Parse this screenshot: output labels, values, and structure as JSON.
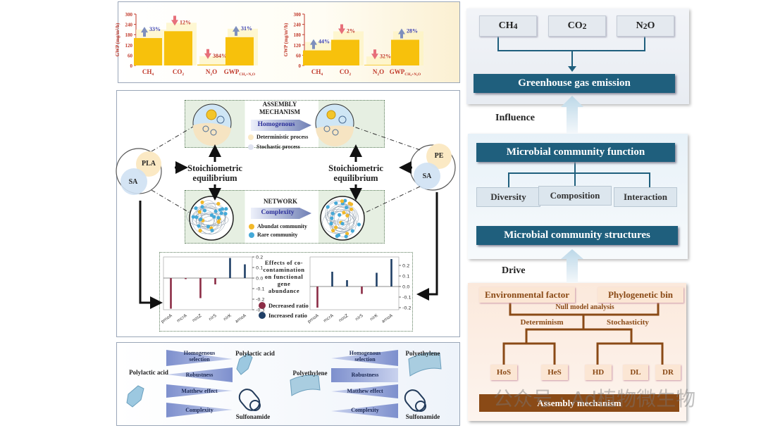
{
  "gwp_panel": {
    "ylabel": "GWP (mg/m²/h)"
  },
  "chart_data": [
    {
      "type": "bar",
      "ylabel": "GWP (mg/m²/h)",
      "ylim": [
        0,
        300
      ],
      "yticks": [
        "0",
        "60",
        "120",
        "180",
        "240",
        "300"
      ],
      "categories": [
        "CH4",
        "CO2",
        "N2O",
        "GWP CH4+N2O"
      ],
      "values": [
        160,
        200,
        5,
        165
      ],
      "annotations": [
        {
          "label": "33%",
          "direction": "up"
        },
        {
          "label": "12%",
          "direction": "down"
        },
        {
          "label": "384%",
          "direction": "down"
        },
        {
          "label": "31%",
          "direction": "up"
        }
      ],
      "bar_color": "#f7c10c"
    },
    {
      "type": "bar",
      "ylabel": "GWP (mg/m²/h)",
      "ylim": [
        0,
        300
      ],
      "yticks": [
        "0",
        "60",
        "120",
        "180",
        "240",
        "300"
      ],
      "categories": [
        "CH4",
        "CO2",
        "N2O",
        "GWP CH4+N2O"
      ],
      "values": [
        88,
        150,
        3,
        150
      ],
      "annotations": [
        {
          "label": "44%",
          "direction": "up"
        },
        {
          "label": "2%",
          "direction": "down"
        },
        {
          "label": "32%",
          "direction": "down"
        },
        {
          "label": "28%",
          "direction": "up"
        }
      ],
      "bar_color": "#f7c10c"
    },
    {
      "type": "bar",
      "categories": [
        "pmoA",
        "mcrA",
        "nosZ",
        "nirS",
        "nirK",
        "amoA"
      ],
      "values": [
        -0.29,
        -0.01,
        -0.19,
        -0.06,
        0.19,
        0.13
      ],
      "ylim": [
        -0.3,
        0.2
      ],
      "yticks": [
        "0.2",
        "0.1",
        "0.0",
        "-0.1",
        "-0.2",
        "-0.3"
      ],
      "colors": {
        "decreased": "#8b2c45",
        "increased": "#1f3f66"
      }
    },
    {
      "type": "bar",
      "categories": [
        "pmoA",
        "mcrA",
        "nosZ",
        "nirS",
        "nirK",
        "amoA"
      ],
      "values": [
        -0.2,
        0.14,
        0.06,
        -0.07,
        0.13,
        0.26
      ],
      "ylim": [
        -0.22,
        0.28
      ],
      "yticks": [
        "0.2",
        "0.1",
        "0.0",
        "-0.1",
        "-0.2"
      ],
      "colors": {
        "decreased": "#8b2c45",
        "increased": "#1f3f66"
      }
    }
  ],
  "gwp_labels": {
    "ch4": {
      "main": "CH",
      "sub": "4"
    },
    "co2": {
      "main": "CO",
      "sub": "2"
    },
    "n2o": {
      "main": "N",
      "sub": "2",
      "tail": "O"
    },
    "gwp": {
      "main": "GWP",
      "sub": "CH₄+N₂O"
    }
  },
  "middle": {
    "left_venn": {
      "a": "PLA",
      "b": "SA"
    },
    "right_venn": {
      "a": "PE",
      "b": "SA"
    },
    "assembly_title_1": "ASSEMBLY",
    "assembly_title_2": "MECHANISM",
    "assembly_arrow": "Homogenous",
    "legend_det": "Deterministic process",
    "legend_sto": "Stochastic process",
    "stoich_1": "Stoichiometric",
    "stoich_2": "equilibrium",
    "network_title": "NETWORK",
    "network_arrow": "Complexity",
    "legend_abund": "Abundat community",
    "legend_rare": "Rare community",
    "gene_title": [
      "Effects of co-",
      "contamination",
      "on functional",
      "gene abundance"
    ],
    "legend_dec": "Decreased ratio",
    "legend_inc": "Increased ratio"
  },
  "bottom": {
    "left_source": "Polylactic acid",
    "left_target": "Polylactic acid",
    "left_sulfa": "Sulfonamide",
    "right_source": "Polyethylene",
    "right_target": "Polyethylene",
    "right_sulfa": "Sulfonamide",
    "wedges": [
      "Homogenous selection",
      "Robustness",
      "Matthew effect",
      "Complexity"
    ]
  },
  "right": {
    "gases": [
      {
        "main": "CH",
        "sub": "4",
        "tail": ""
      },
      {
        "main": "CO",
        "sub": "2",
        "tail": ""
      },
      {
        "main": "N",
        "sub": "2",
        "tail": "O"
      }
    ],
    "emission": "Greenhouse gas emission",
    "influence": "Influence",
    "function": "Microbial community function",
    "diversity": "Diversity",
    "composition": "Composition",
    "interaction": "Interaction",
    "structures": "Microbial community structures",
    "drive": "Drive",
    "env": "Environmental factor",
    "phylo": "Phylogenetic bin",
    "null_model": "Null model analysis",
    "determinism": "Determinism",
    "stochasticity": "Stochasticity",
    "leaves": [
      "HoS",
      "HeS",
      "HD",
      "DL",
      "DR"
    ],
    "assembly": "Assembly mechanism"
  },
  "watermark": "公众号 · Ad植物微生物"
}
